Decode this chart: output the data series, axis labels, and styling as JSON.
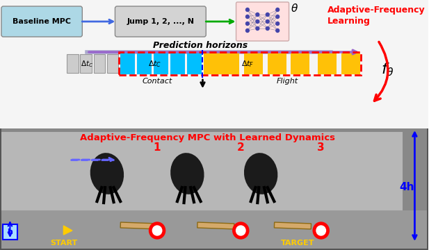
{
  "title_top": "Adaptive-Frequency\nLearning",
  "title_bottom": "Adaptive-Frequency MPC with Learned Dynamics",
  "baseline_mpc_label": "Baseline MPC",
  "jump_label": "Jump 1, 2, ..., N",
  "theta_label": "θ",
  "f_theta_label": "$f_{\\theta}$",
  "prediction_horizons_label": "Prediction horizons",
  "delta_tc_label": "Δ$t_C$",
  "delta_tc2_label": "Δ$t_C$",
  "delta_tf_label": "Δ$t_F$",
  "contact_label": "Contact",
  "flight_label": "Flight",
  "start_label": "START",
  "target_label": "TARGET",
  "h_label": "h",
  "h4_label": "4h",
  "jump_numbers": [
    "1",
    "2",
    "3"
  ],
  "bg_color": "#ffffff",
  "top_section_bg": "#f0f0f0",
  "baseline_box_color": "#add8e6",
  "jump_box_color": "#d3d3d3",
  "nn_box_color": "#ffe0e0",
  "cyan_color": "#00bfff",
  "gold_color": "#ffc107",
  "gray_bar_color": "#c0c0c0",
  "red_color": "#ff0000",
  "blue_color": "#0000ff",
  "dashed_arrow_color": "#6666ff",
  "arrow_blue": "#4169e1",
  "arrow_green": "#00aa00",
  "yellow_color": "#ffcc00"
}
